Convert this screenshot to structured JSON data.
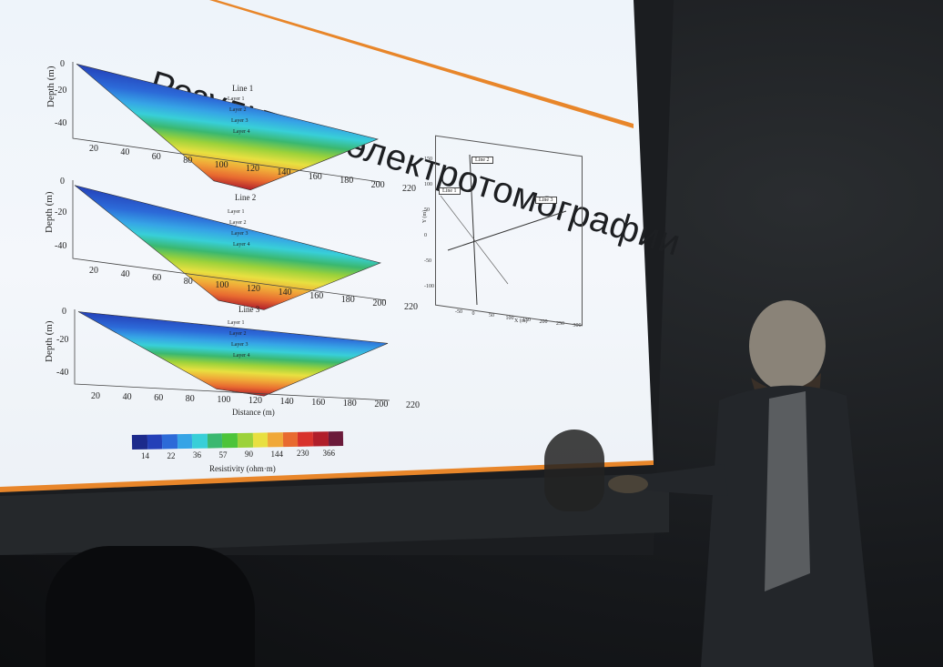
{
  "slide": {
    "title": "Результаты электротомографии",
    "panels": [
      {
        "line": "Line 1",
        "y_label": "Depth (m)",
        "y_ticks": [
          "0",
          "-20",
          "-40"
        ],
        "x_ticks": [
          "20",
          "40",
          "60",
          "80",
          "100",
          "120",
          "140",
          "160",
          "180",
          "200",
          "220"
        ],
        "layers": [
          "Layer 1",
          "Layer 2",
          "Layer 3",
          "Layer 4"
        ]
      },
      {
        "line": "Line 2",
        "y_label": "Depth (m)",
        "y_ticks": [
          "0",
          "-20",
          "-40"
        ],
        "x_ticks": [
          "20",
          "40",
          "60",
          "80",
          "100",
          "120",
          "140",
          "160",
          "180",
          "200",
          "220"
        ],
        "layers": [
          "Layer 1",
          "Layer 2",
          "Layer 3",
          "Layer 4"
        ]
      },
      {
        "line": "Line 3",
        "y_label": "Depth (m)",
        "y_ticks": [
          "0",
          "-20",
          "-40"
        ],
        "x_ticks": [
          "20",
          "40",
          "60",
          "80",
          "100",
          "120",
          "140",
          "160",
          "180",
          "200",
          "220"
        ],
        "layers": [
          "Layer 1",
          "Layer 2",
          "Layer 3",
          "Layer 4"
        ],
        "x_label": "Distance (m)"
      }
    ],
    "colorbar": {
      "ticks": [
        "14",
        "22",
        "36",
        "57",
        "90",
        "144",
        "230",
        "366"
      ],
      "label": "Resistivity (ohm·m)",
      "colors": [
        "#1c2a8c",
        "#2440b8",
        "#2c6ad8",
        "#36a4e6",
        "#38cfd8",
        "#3ab870",
        "#4cc43a",
        "#9cd23a",
        "#e8e040",
        "#f0a838",
        "#e86a30",
        "#d8322c",
        "#b01e2a",
        "#6a1a3a"
      ]
    },
    "map": {
      "y_label": "Y (m)",
      "x_label": "X (m)",
      "y_ticks": [
        "150",
        "100",
        "50",
        "0",
        "-50",
        "-100"
      ],
      "x_ticks": [
        "-50",
        "0",
        "50",
        "100",
        "150",
        "200",
        "250",
        "300"
      ],
      "lines": [
        "Line 1",
        "Line 2",
        "Line 3"
      ]
    }
  }
}
